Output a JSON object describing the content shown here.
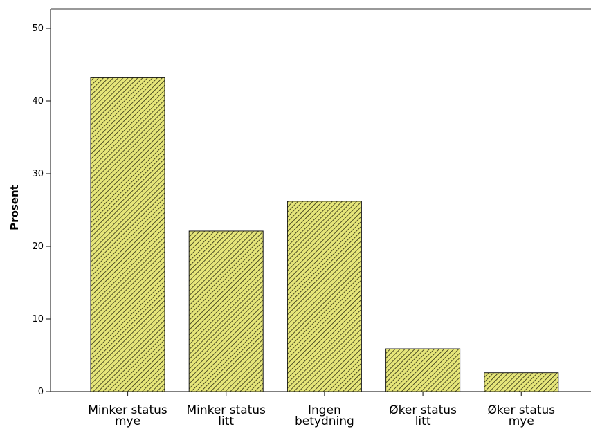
{
  "chart_data": {
    "type": "bar",
    "title": "",
    "xlabel": "",
    "ylabel": "Prosent",
    "ylim": [
      0,
      50
    ],
    "yticks": [
      0,
      10,
      20,
      30,
      40,
      50
    ],
    "grid": false,
    "categories": [
      [
        "Minker status",
        "mye"
      ],
      [
        "Minker status",
        "litt"
      ],
      [
        "Ingen",
        "betydning"
      ],
      [
        "Øker status",
        "litt"
      ],
      [
        "Øker status",
        "mye"
      ]
    ],
    "values": [
      43.2,
      22.1,
      26.2,
      5.9,
      2.6
    ],
    "colors": {
      "bar_fill": "#e6e67a",
      "bar_hatch": "#2b2b10",
      "bar_stroke": "#1a1a1a",
      "axis": "#333333"
    }
  }
}
